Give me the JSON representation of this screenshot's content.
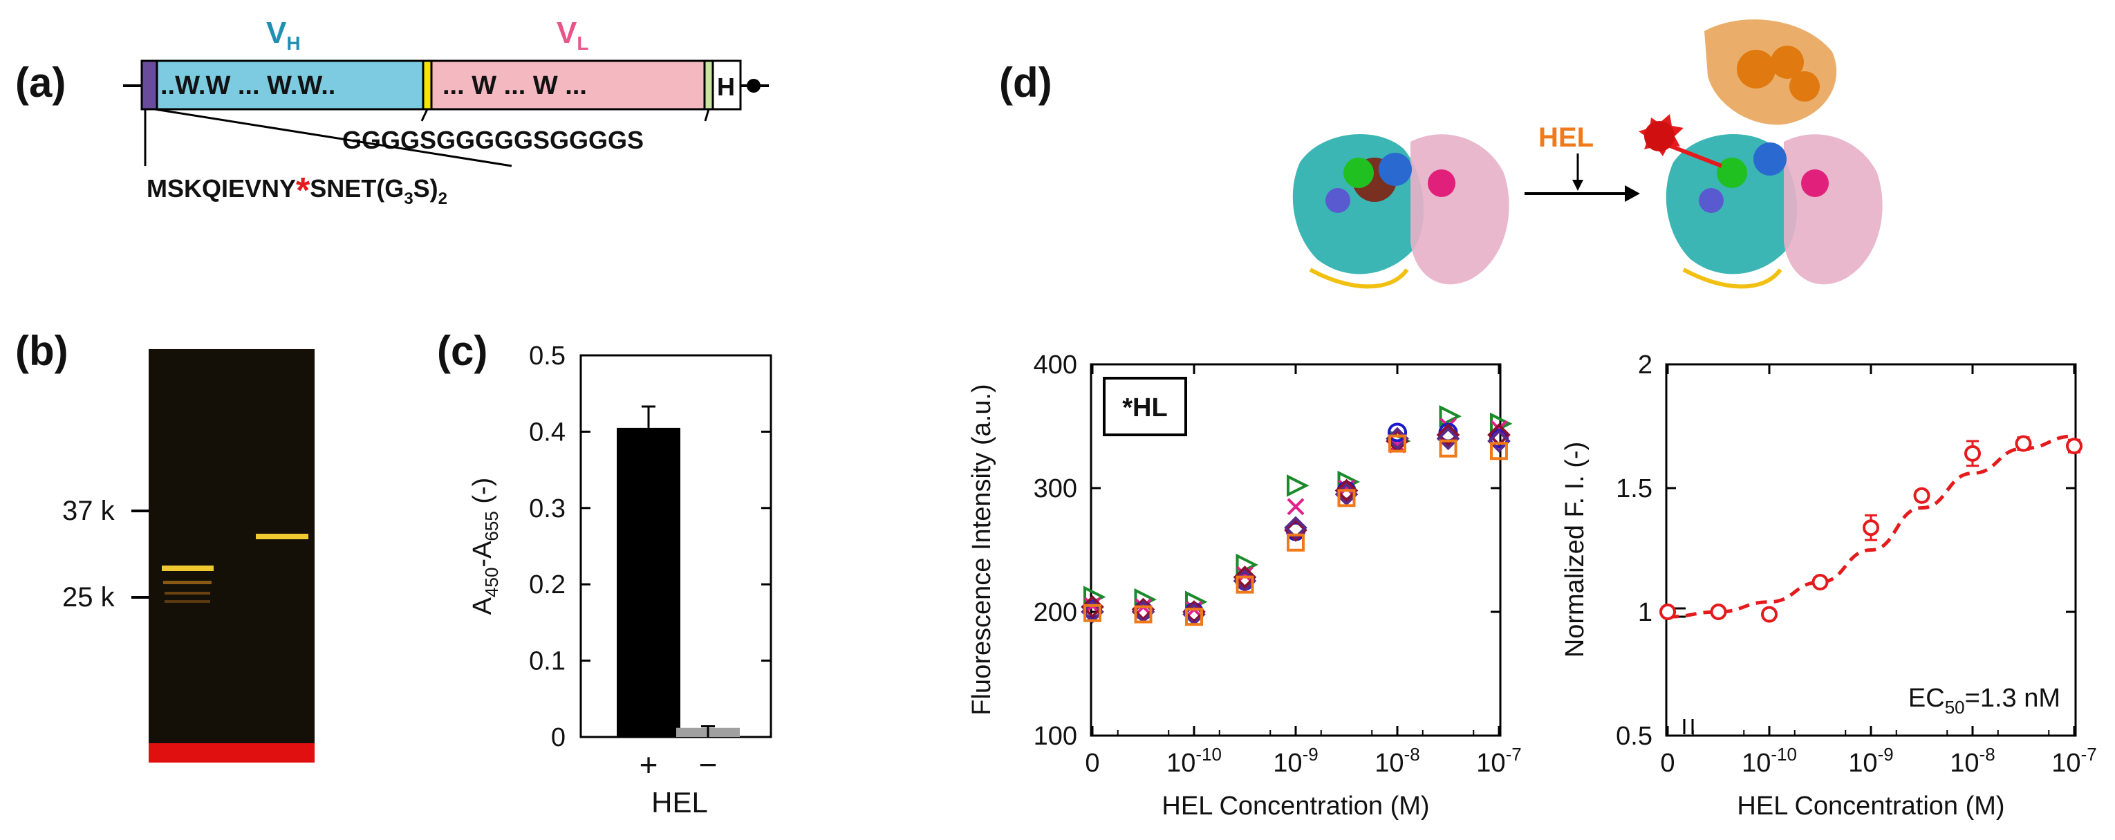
{
  "panels": {
    "a": "(a)",
    "b": "(b)",
    "c": "(c)",
    "d": "(d)"
  },
  "construct": {
    "vh_label_main": "V",
    "vh_label_sub": "H",
    "vl_label_main": "V",
    "vl_label_sub": "L",
    "vh_motif": "..W.W ... W.W..",
    "vl_motif": "... W ... W ...",
    "tag": "H",
    "linker": "GGGGSGGGGGSGGGGS",
    "leader_pre": "MSKQIEVNY",
    "leader_star": "*",
    "leader_post": "SNET(G",
    "leader_sub3": "3",
    "leader_s": "S)",
    "leader_sub2": "2",
    "colors": {
      "vh": "#7ccbe0",
      "vl": "#f4b8c1",
      "vh_text": "#1f8fb2",
      "vl_text": "#e8558a",
      "leader": "#6a4c9c",
      "star": "#e41a1c",
      "yellow": "#f2e600",
      "light_green": "#c8e6a0"
    }
  },
  "gel": {
    "markers": [
      "37 k",
      "25 k"
    ],
    "lane_labels": []
  },
  "scheme": {
    "arrow_label": "HEL",
    "arrow_color": "#f07a1a"
  },
  "chart_data": [
    {
      "id": "c",
      "type": "bar",
      "categories": [
        "+",
        "−"
      ],
      "values": [
        0.405,
        0.012
      ],
      "errors": [
        0.028,
        0.002
      ],
      "colors": [
        "#000000",
        "#a0a0a0"
      ],
      "xlabel": "HEL",
      "ylabel_main": "A",
      "ylabel_sub1": "450",
      "ylabel_mid": "-A",
      "ylabel_sub2": "655",
      "ylabel_tail": " (-)",
      "ylim": [
        0,
        0.5
      ],
      "yticks": [
        0,
        0.1,
        0.2,
        0.3,
        0.4,
        0.5
      ],
      "ytick_labels": [
        "0",
        "0.1",
        "0.2",
        "0.3",
        "0.4",
        "0.5"
      ]
    },
    {
      "id": "d-left",
      "type": "scatter",
      "title": "*HL",
      "xlabel": "HEL Concentration (M)",
      "ylabel": "Fluorescence Intensity (a.u.)",
      "ylim": [
        100,
        400
      ],
      "yticks": [
        100,
        200,
        300,
        400
      ],
      "ytick_labels": [
        "100",
        "200",
        "300",
        "400"
      ],
      "xtick_labels": [
        {
          "pos": 0,
          "base": "0",
          "exp": ""
        },
        {
          "pos": 2,
          "base": "10",
          "exp": "-10"
        },
        {
          "pos": 4,
          "base": "10",
          "exp": "-9"
        },
        {
          "pos": 6,
          "base": "10",
          "exp": "-8"
        },
        {
          "pos": 8,
          "base": "10",
          "exp": "-7"
        }
      ],
      "x_positions": [
        0,
        1,
        2,
        3,
        4,
        5,
        6,
        7,
        8
      ],
      "concentrations_M": [
        0,
        3e-11,
        1e-10,
        3e-10,
        1e-09,
        3e-09,
        1e-08,
        3e-08,
        1e-07
      ],
      "series": [
        {
          "name": "green triangle",
          "marker": "triangle",
          "color": "#1a8a2a",
          "values": [
            212,
            210,
            208,
            238,
            302,
            305,
            338,
            358,
            352
          ]
        },
        {
          "name": "magenta x",
          "marker": "x",
          "color": "#e0208c",
          "values": [
            205,
            204,
            202,
            230,
            285,
            300,
            335,
            350,
            348
          ]
        },
        {
          "name": "blue circle",
          "marker": "circle",
          "color": "#1a1acc",
          "values": [
            202,
            201,
            200,
            225,
            265,
            298,
            345,
            345,
            340
          ]
        },
        {
          "name": "dark red diamond",
          "marker": "diamond",
          "color": "#8a1030",
          "values": [
            204,
            202,
            200,
            228,
            266,
            298,
            338,
            343,
            343
          ]
        },
        {
          "name": "purple diamond",
          "marker": "diamond2",
          "color": "#5a2a8a",
          "values": [
            200,
            200,
            198,
            225,
            268,
            295,
            340,
            340,
            338
          ]
        },
        {
          "name": "orange square",
          "marker": "square",
          "color": "#f07a1a",
          "values": [
            199,
            198,
            196,
            222,
            256,
            292,
            336,
            332,
            330
          ]
        }
      ]
    },
    {
      "id": "d-right",
      "type": "line",
      "xlabel": "HEL Concentration (M)",
      "ylabel": "Normalized F. I. (-)",
      "ylim": [
        0.5,
        2
      ],
      "yticks": [
        0.5,
        1,
        1.5,
        2
      ],
      "ytick_labels": [
        "0.5",
        "1",
        "1.5",
        "2"
      ],
      "xtick_labels": [
        {
          "pos": 0,
          "base": "0",
          "exp": ""
        },
        {
          "pos": 2,
          "base": "10",
          "exp": "-10"
        },
        {
          "pos": 4,
          "base": "10",
          "exp": "-9"
        },
        {
          "pos": 6,
          "base": "10",
          "exp": "-8"
        },
        {
          "pos": 8,
          "base": "10",
          "exp": "-7"
        }
      ],
      "x_positions": [
        0,
        1,
        2,
        3,
        4,
        5,
        6,
        7,
        8
      ],
      "values": [
        1.0,
        1.0,
        0.99,
        1.12,
        1.34,
        1.47,
        1.64,
        1.68,
        1.67
      ],
      "errors": [
        0.02,
        0.015,
        0.015,
        0.02,
        0.05,
        0.02,
        0.05,
        0.025,
        0.025
      ],
      "fit": [
        0.98,
        1.0,
        1.04,
        1.12,
        1.25,
        1.42,
        1.56,
        1.66,
        1.71
      ],
      "color": "#e41a1c",
      "annotation_pre": "EC",
      "annotation_sub": "50",
      "annotation_post": "=1.3 nM"
    }
  ]
}
